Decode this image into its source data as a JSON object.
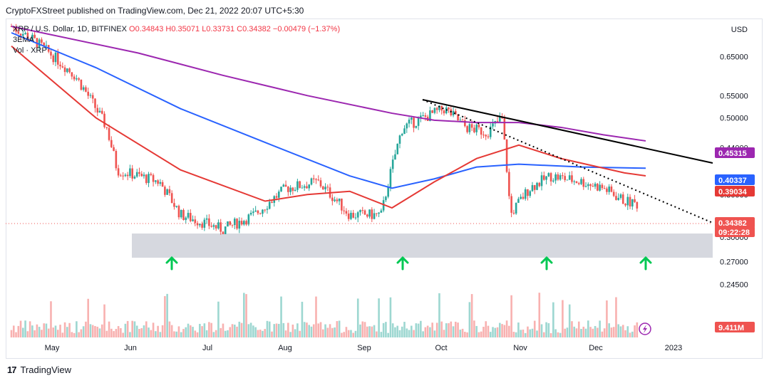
{
  "header": {
    "publish_line": "CryptoFXStreet published on TradingView.com, Dec 21, 2022 20:07 UTC+5:30"
  },
  "legend": {
    "symbol": "XRP / U.S. Dollar, 1D, BITFINEX",
    "open": "O0.34843",
    "high": "H0.35071",
    "low": "L0.33731",
    "close": "C0.34382",
    "change": "−0.00479 (−1.37%)",
    "ema_label": "3EMA",
    "vol_label": "Vol · XRP"
  },
  "currency": "USD",
  "footer": {
    "brand": "TradingView"
  },
  "colors": {
    "up": "#26a69a",
    "down": "#ef5350",
    "ema_red": "#e53935",
    "ema_blue": "#2962ff",
    "ema_purple": "#9c27b0",
    "trend": "#000000",
    "support_zone": "#d1d4dc",
    "arrow": "#00c853"
  },
  "chart_data": {
    "type": "candlestick",
    "y_scale": "log",
    "ylim": [
      0.2,
      0.72
    ],
    "y_ticks": [
      "0.65000",
      "0.55000",
      "0.50000",
      "0.44000",
      "0.36000",
      "0.30000",
      "0.27000",
      "0.24500"
    ],
    "x_ticks": [
      "May",
      "Jun",
      "Jul",
      "Aug",
      "Sep",
      "Oct",
      "Nov",
      "Dec",
      "2023"
    ],
    "price_tags": [
      {
        "value": "0.45315",
        "color": "#9c27b0"
      },
      {
        "value": "0.40337",
        "color": "#2962ff"
      },
      {
        "value": "0.39034",
        "color": "#e53935"
      },
      {
        "value": "0.34382",
        "color": "#ef5350"
      },
      {
        "value": "09:22:28",
        "color": "#ef5350"
      },
      {
        "value": "9.411M",
        "color": "#ef5350"
      }
    ],
    "support_zone": [
      0.3,
      0.325
    ],
    "ema_purple": [
      [
        0.74,
        0
      ],
      [
        0.66,
        60
      ],
      [
        0.6,
        100
      ],
      [
        0.55,
        140
      ],
      [
        0.51,
        180
      ],
      [
        0.495,
        200
      ],
      [
        0.49,
        220
      ],
      [
        0.49,
        240
      ],
      [
        0.48,
        260
      ],
      [
        0.465,
        280
      ],
      [
        0.453,
        300
      ]
    ],
    "ema_blue": [
      [
        0.72,
        0
      ],
      [
        0.62,
        40
      ],
      [
        0.52,
        80
      ],
      [
        0.45,
        120
      ],
      [
        0.39,
        160
      ],
      [
        0.37,
        180
      ],
      [
        0.385,
        200
      ],
      [
        0.405,
        220
      ],
      [
        0.41,
        240
      ],
      [
        0.405,
        270
      ],
      [
        0.403,
        300
      ]
    ],
    "ema_red": [
      [
        0.68,
        0
      ],
      [
        0.5,
        40
      ],
      [
        0.4,
        80
      ],
      [
        0.35,
        120
      ],
      [
        0.36,
        140
      ],
      [
        0.365,
        160
      ],
      [
        0.34,
        180
      ],
      [
        0.38,
        200
      ],
      [
        0.42,
        220
      ],
      [
        0.445,
        240
      ],
      [
        0.42,
        260
      ],
      [
        0.395,
        290
      ],
      [
        0.39,
        300
      ]
    ]
  }
}
